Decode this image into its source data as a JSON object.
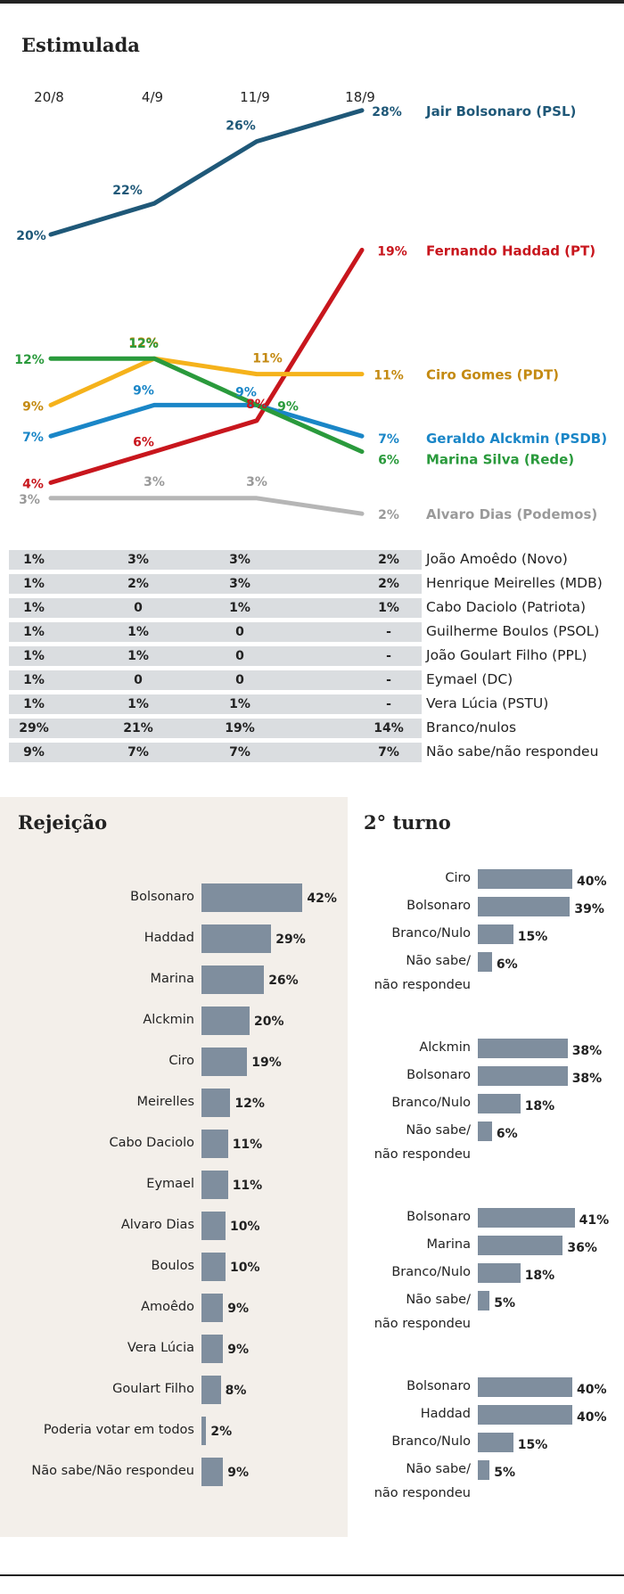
{
  "chart_data": [
    {
      "type": "line",
      "title": "Estimulada",
      "x": [
        "20/8",
        "4/9",
        "11/9",
        "18/9"
      ],
      "ylim": [
        0,
        30
      ],
      "series": [
        {
          "name": "Jair Bolsonaro (PSL)",
          "values": [
            20,
            22,
            26,
            28
          ],
          "labels": [
            "20%",
            "22%",
            "26%",
            "28%"
          ],
          "color": "#1f5878"
        },
        {
          "name": "Fernando Haddad (PT)",
          "values": [
            4,
            6,
            8,
            19
          ],
          "labels": [
            "4%",
            "6%",
            "8%",
            "19%"
          ],
          "color": "#c8161d"
        },
        {
          "name": "Ciro Gomes (PDT)",
          "values": [
            9,
            12,
            11,
            11
          ],
          "labels": [
            "9%",
            "12%",
            "11%",
            "11%"
          ],
          "color": "#f5b21b",
          "text_color": "#c48a12"
        },
        {
          "name": "Geraldo Alckmin (PSDB)",
          "values": [
            7,
            9,
            9,
            7
          ],
          "labels": [
            "7%",
            "9%",
            "9%",
            "7%"
          ],
          "color": "#1a86c7"
        },
        {
          "name": "Marina Silva (Rede)",
          "values": [
            12,
            12,
            9,
            6
          ],
          "labels": [
            "12%",
            "12%",
            "9%",
            "6%"
          ],
          "color": "#2a9a3c"
        },
        {
          "name": "Alvaro Dias (Podemos)",
          "values": [
            3,
            3,
            3,
            2
          ],
          "labels": [
            "3%",
            "3%",
            "3%",
            "2%"
          ],
          "color": "#b6b6b6",
          "text_color": "#9a9a9a"
        }
      ]
    },
    {
      "type": "table",
      "columns": [
        "20/8",
        "4/9",
        "11/9",
        "18/9"
      ],
      "rows": [
        {
          "name": "João Amoêdo (Novo)",
          "values": [
            "1%",
            "3%",
            "3%",
            "2%"
          ]
        },
        {
          "name": "Henrique Meirelles (MDB)",
          "values": [
            "1%",
            "2%",
            "3%",
            "2%"
          ]
        },
        {
          "name": "Cabo Daciolo (Patriota)",
          "values": [
            "1%",
            "0",
            "1%",
            "1%"
          ]
        },
        {
          "name": "Guilherme Boulos (PSOL)",
          "values": [
            "1%",
            "1%",
            "0",
            "-"
          ]
        },
        {
          "name": "João Goulart Filho (PPL)",
          "values": [
            "1%",
            "1%",
            "0",
            "-"
          ]
        },
        {
          "name": "Eymael (DC)",
          "values": [
            "1%",
            "0",
            "0",
            "-"
          ]
        },
        {
          "name": "Vera Lúcia (PSTU)",
          "values": [
            "1%",
            "1%",
            "1%",
            "-"
          ]
        },
        {
          "name": "Branco/nulos",
          "values": [
            "29%",
            "21%",
            "19%",
            "14%"
          ]
        },
        {
          "name": "Não sabe/não respondeu",
          "values": [
            "9%",
            "7%",
            "7%",
            "7%"
          ]
        }
      ]
    },
    {
      "type": "bar",
      "title": "Rejeição",
      "categories": [
        "Bolsonaro",
        "Haddad",
        "Marina",
        "Alckmin",
        "Ciro",
        "Meirelles",
        "Cabo Daciolo",
        "Eymael",
        "Alvaro Dias",
        "Boulos",
        "Amoêdo",
        "Vera Lúcia",
        "Goulart Filho",
        "Poderia votar em todos",
        "Não sabe/Não respondeu"
      ],
      "values": [
        42,
        29,
        26,
        20,
        19,
        12,
        11,
        11,
        10,
        10,
        9,
        9,
        8,
        2,
        9
      ],
      "labels": [
        "42%",
        "29%",
        "26%",
        "20%",
        "19%",
        "12%",
        "11%",
        "11%",
        "10%",
        "10%",
        "9%",
        "9%",
        "8%",
        "2%",
        "9%"
      ]
    },
    {
      "type": "bar",
      "title": "2° turno",
      "groups": [
        {
          "items": [
            {
              "label": [
                "Ciro"
              ],
              "value": 40,
              "text": "40%"
            },
            {
              "label": [
                "Bolsonaro"
              ],
              "value": 39,
              "text": "39%"
            },
            {
              "label": [
                "Branco/Nulo"
              ],
              "value": 15,
              "text": "15%"
            },
            {
              "label": [
                "Não sabe/",
                "não respondeu"
              ],
              "value": 6,
              "text": "6%"
            }
          ]
        },
        {
          "items": [
            {
              "label": [
                "Alckmin"
              ],
              "value": 38,
              "text": "38%"
            },
            {
              "label": [
                "Bolsonaro"
              ],
              "value": 38,
              "text": "38%"
            },
            {
              "label": [
                "Branco/Nulo"
              ],
              "value": 18,
              "text": "18%"
            },
            {
              "label": [
                "Não sabe/",
                "não respondeu"
              ],
              "value": 6,
              "text": "6%"
            }
          ]
        },
        {
          "items": [
            {
              "label": [
                "Bolsonaro"
              ],
              "value": 41,
              "text": "41%"
            },
            {
              "label": [
                "Marina"
              ],
              "value": 36,
              "text": "36%"
            },
            {
              "label": [
                "Branco/Nulo"
              ],
              "value": 18,
              "text": "18%"
            },
            {
              "label": [
                "Não sabe/",
                "não respondeu"
              ],
              "value": 5,
              "text": "5%"
            }
          ]
        },
        {
          "items": [
            {
              "label": [
                "Bolsonaro"
              ],
              "value": 40,
              "text": "40%"
            },
            {
              "label": [
                "Haddad"
              ],
              "value": 40,
              "text": "40%"
            },
            {
              "label": [
                "Branco/Nulo"
              ],
              "value": 15,
              "text": "15%"
            },
            {
              "label": [
                "Não sabe/",
                "não respondeu"
              ],
              "value": 5,
              "text": "5%"
            }
          ]
        }
      ]
    }
  ]
}
